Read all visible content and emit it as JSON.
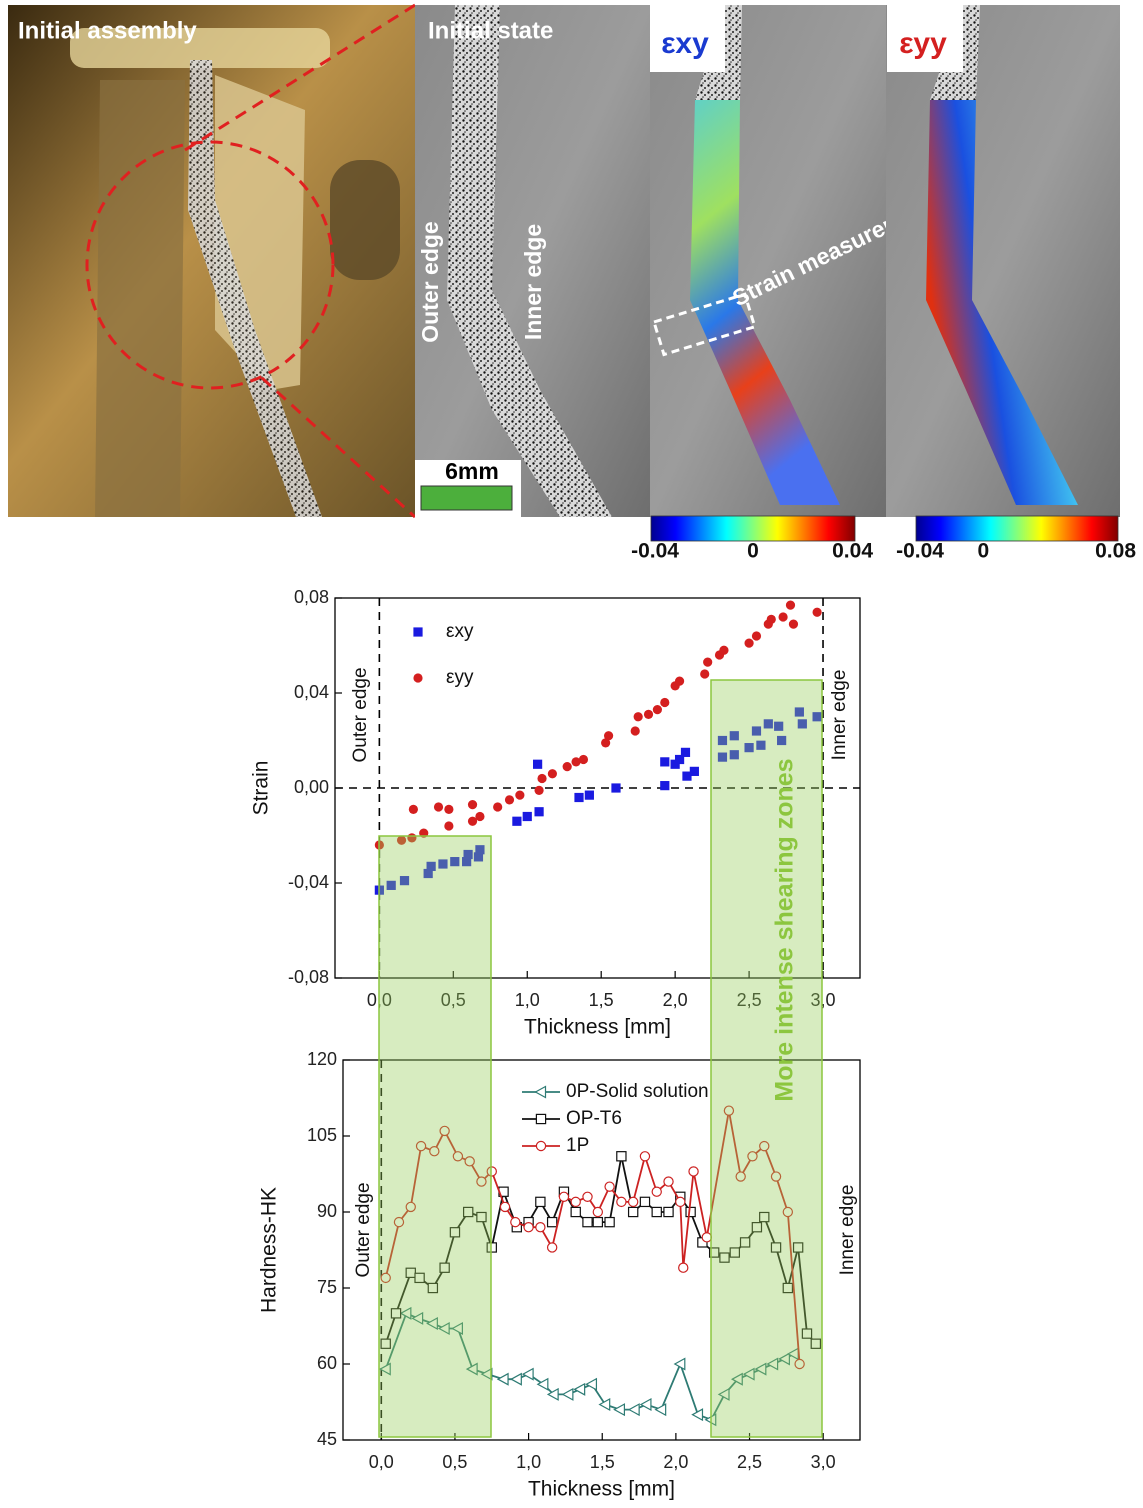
{
  "panels": {
    "assembly": {
      "title": "Initial assembly"
    },
    "initial_state": {
      "title": "Initial state",
      "outer_edge": "Outer edge",
      "inner_edge": "Inner edge",
      "scale_bar": "6mm"
    },
    "exy": {
      "title": "εxy",
      "annotation": "Strain measurements",
      "colorbar": {
        "lim": [
          -0.04,
          0.04
        ],
        "ticks": [
          -0.04,
          0,
          0.04
        ]
      }
    },
    "eyy": {
      "title": "εyy",
      "colorbar": {
        "lim": [
          -0.04,
          0.08
        ],
        "ticks": [
          -0.04,
          0,
          0.08
        ]
      }
    }
  },
  "zones_label": "More intense shearing zones",
  "chart_data": [
    {
      "type": "scatter",
      "xlabel": "Thickness [mm]",
      "ylabel": "Strain",
      "xlim": [
        -0.3,
        3.25
      ],
      "ylim": [
        -0.08,
        0.08
      ],
      "xticks": [
        {
          "value": 0,
          "label": "0,0"
        },
        {
          "value": 0.5,
          "label": "0,5"
        },
        {
          "value": 1,
          "label": "1,0"
        },
        {
          "value": 1.5,
          "label": "1,5"
        },
        {
          "value": 2,
          "label": "2,0"
        },
        {
          "value": 2.5,
          "label": "2,5"
        },
        {
          "value": 3,
          "label": "3,0"
        }
      ],
      "yticks": [
        {
          "value": -0.08,
          "label": "-0,08"
        },
        {
          "value": -0.04,
          "label": "-0,04"
        },
        {
          "value": 0,
          "label": "0,00"
        },
        {
          "value": 0.04,
          "label": "0,04"
        },
        {
          "value": 0.08,
          "label": "0,08"
        }
      ],
      "reference_lines": {
        "x": [
          0,
          3
        ],
        "y": [
          0
        ]
      },
      "legend": "upper left",
      "annotations": [
        "Outer edge",
        "Inner edge"
      ],
      "series": [
        {
          "name": "εxy",
          "color": "#1a1ae0",
          "marker": "square",
          "x": [
            0.0,
            0.08,
            0.17,
            0.33,
            0.35,
            0.43,
            0.51,
            0.59,
            0.6,
            0.67,
            0.68,
            0.93,
            1.0,
            1.08,
            1.07,
            1.35,
            1.42,
            1.6,
            1.93,
            1.93,
            2.0,
            2.03,
            2.07,
            2.08,
            2.13,
            2.32,
            2.32,
            2.4,
            2.4,
            2.5,
            2.55,
            2.58,
            2.63,
            2.7,
            2.72,
            2.84,
            2.86,
            2.96
          ],
          "values": [
            -0.043,
            -0.041,
            -0.039,
            -0.036,
            -0.033,
            -0.032,
            -0.031,
            -0.031,
            -0.028,
            -0.029,
            -0.026,
            -0.014,
            -0.012,
            -0.01,
            0.01,
            -0.004,
            -0.003,
            0.0,
            0.001,
            0.011,
            0.01,
            0.012,
            0.015,
            0.005,
            0.007,
            0.013,
            0.02,
            0.014,
            0.022,
            0.017,
            0.024,
            0.018,
            0.027,
            0.026,
            0.02,
            0.032,
            0.027,
            0.03
          ]
        },
        {
          "name": "εyy",
          "color": "#d41f1f",
          "marker": "circle",
          "x": [
            0.0,
            0.15,
            0.22,
            0.23,
            0.3,
            0.4,
            0.47,
            0.47,
            0.63,
            0.63,
            0.68,
            0.8,
            0.88,
            0.95,
            1.08,
            1.1,
            1.17,
            1.27,
            1.33,
            1.38,
            1.53,
            1.55,
            1.73,
            1.75,
            1.82,
            1.88,
            1.93,
            2.0,
            2.03,
            2.2,
            2.22,
            2.3,
            2.33,
            2.5,
            2.55,
            2.63,
            2.65,
            2.73,
            2.78,
            2.8,
            2.96
          ],
          "values": [
            -0.024,
            -0.022,
            -0.021,
            -0.009,
            -0.019,
            -0.008,
            -0.016,
            -0.009,
            -0.007,
            -0.014,
            -0.012,
            -0.008,
            -0.005,
            -0.003,
            -0.001,
            0.004,
            0.006,
            0.009,
            0.011,
            0.012,
            0.019,
            0.022,
            0.024,
            0.03,
            0.031,
            0.033,
            0.036,
            0.043,
            0.045,
            0.048,
            0.053,
            0.056,
            0.058,
            0.061,
            0.064,
            0.069,
            0.071,
            0.072,
            0.077,
            0.069,
            0.074
          ]
        }
      ]
    },
    {
      "type": "line",
      "xlabel": "Thickness [mm]",
      "ylabel": "Hardness-HK",
      "xlim": [
        -0.26,
        3.25
      ],
      "ylim": [
        45,
        120
      ],
      "xticks": [
        {
          "value": 0,
          "label": "0,0"
        },
        {
          "value": 0.5,
          "label": "0,5"
        },
        {
          "value": 1,
          "label": "1,0"
        },
        {
          "value": 1.5,
          "label": "1,5"
        },
        {
          "value": 2,
          "label": "2,0"
        },
        {
          "value": 2.5,
          "label": "2,5"
        },
        {
          "value": 3,
          "label": "3,0"
        }
      ],
      "yticks": [
        45,
        60,
        75,
        90,
        105,
        120
      ],
      "reference_lines": {
        "x": [
          0
        ]
      },
      "legend": "upper center",
      "annotations": [
        "Outer edge",
        "Inner edge"
      ],
      "series": [
        {
          "name": "0P-Solid solution",
          "color": "#2e7b74",
          "marker": "triangle-left",
          "x": [
            0.03,
            0.17,
            0.25,
            0.35,
            0.43,
            0.52,
            0.62,
            0.72,
            0.83,
            0.92,
            1.0,
            1.1,
            1.17,
            1.27,
            1.35,
            1.43,
            1.52,
            1.62,
            1.72,
            1.8,
            1.9,
            2.03,
            2.15,
            2.24,
            2.33,
            2.42,
            2.5,
            2.58,
            2.66,
            2.74,
            2.8
          ],
          "values": [
            59,
            70,
            69,
            68,
            67,
            67,
            59,
            58,
            57,
            57,
            58,
            56,
            54,
            54,
            55,
            56,
            52,
            51,
            51,
            52,
            51,
            60,
            50,
            49,
            54,
            57,
            58,
            59,
            60,
            61,
            62
          ]
        },
        {
          "name": "OP-T6",
          "color": "#111111",
          "marker": "square",
          "x": [
            0.03,
            0.1,
            0.2,
            0.26,
            0.35,
            0.43,
            0.5,
            0.59,
            0.68,
            0.75,
            0.83,
            0.92,
            1.0,
            1.08,
            1.16,
            1.24,
            1.32,
            1.4,
            1.47,
            1.55,
            1.63,
            1.71,
            1.79,
            1.87,
            1.95,
            2.03,
            2.1,
            2.18,
            2.26,
            2.33,
            2.4,
            2.47,
            2.55,
            2.6,
            2.68,
            2.76,
            2.83,
            2.89,
            2.95
          ],
          "values": [
            64,
            70,
            78,
            77,
            75,
            79,
            86,
            90,
            89,
            83,
            94,
            87,
            88,
            92,
            88,
            94,
            90,
            88,
            88,
            88,
            101,
            90,
            92,
            90,
            90,
            93,
            90,
            84,
            82,
            81,
            82,
            84,
            87,
            89,
            83,
            75,
            83,
            66,
            64
          ]
        },
        {
          "name": "1P",
          "color": "#cc2222",
          "marker": "circle",
          "x": [
            0.03,
            0.12,
            0.2,
            0.27,
            0.36,
            0.43,
            0.52,
            0.6,
            0.68,
            0.75,
            0.84,
            0.91,
            1.0,
            1.08,
            1.16,
            1.24,
            1.32,
            1.4,
            1.47,
            1.55,
            1.63,
            1.71,
            1.79,
            1.87,
            1.95,
            2.03,
            2.05,
            2.12,
            2.21,
            2.36,
            2.44,
            2.52,
            2.6,
            2.68,
            2.76,
            2.84
          ],
          "values": [
            77,
            88,
            91,
            103,
            102,
            106,
            101,
            100,
            96,
            98,
            91,
            88,
            87,
            87,
            83,
            93,
            92,
            93,
            90,
            95,
            92,
            92,
            101,
            94,
            96,
            92,
            79,
            98,
            85,
            110,
            97,
            101,
            103,
            97,
            90,
            60
          ]
        }
      ]
    }
  ]
}
